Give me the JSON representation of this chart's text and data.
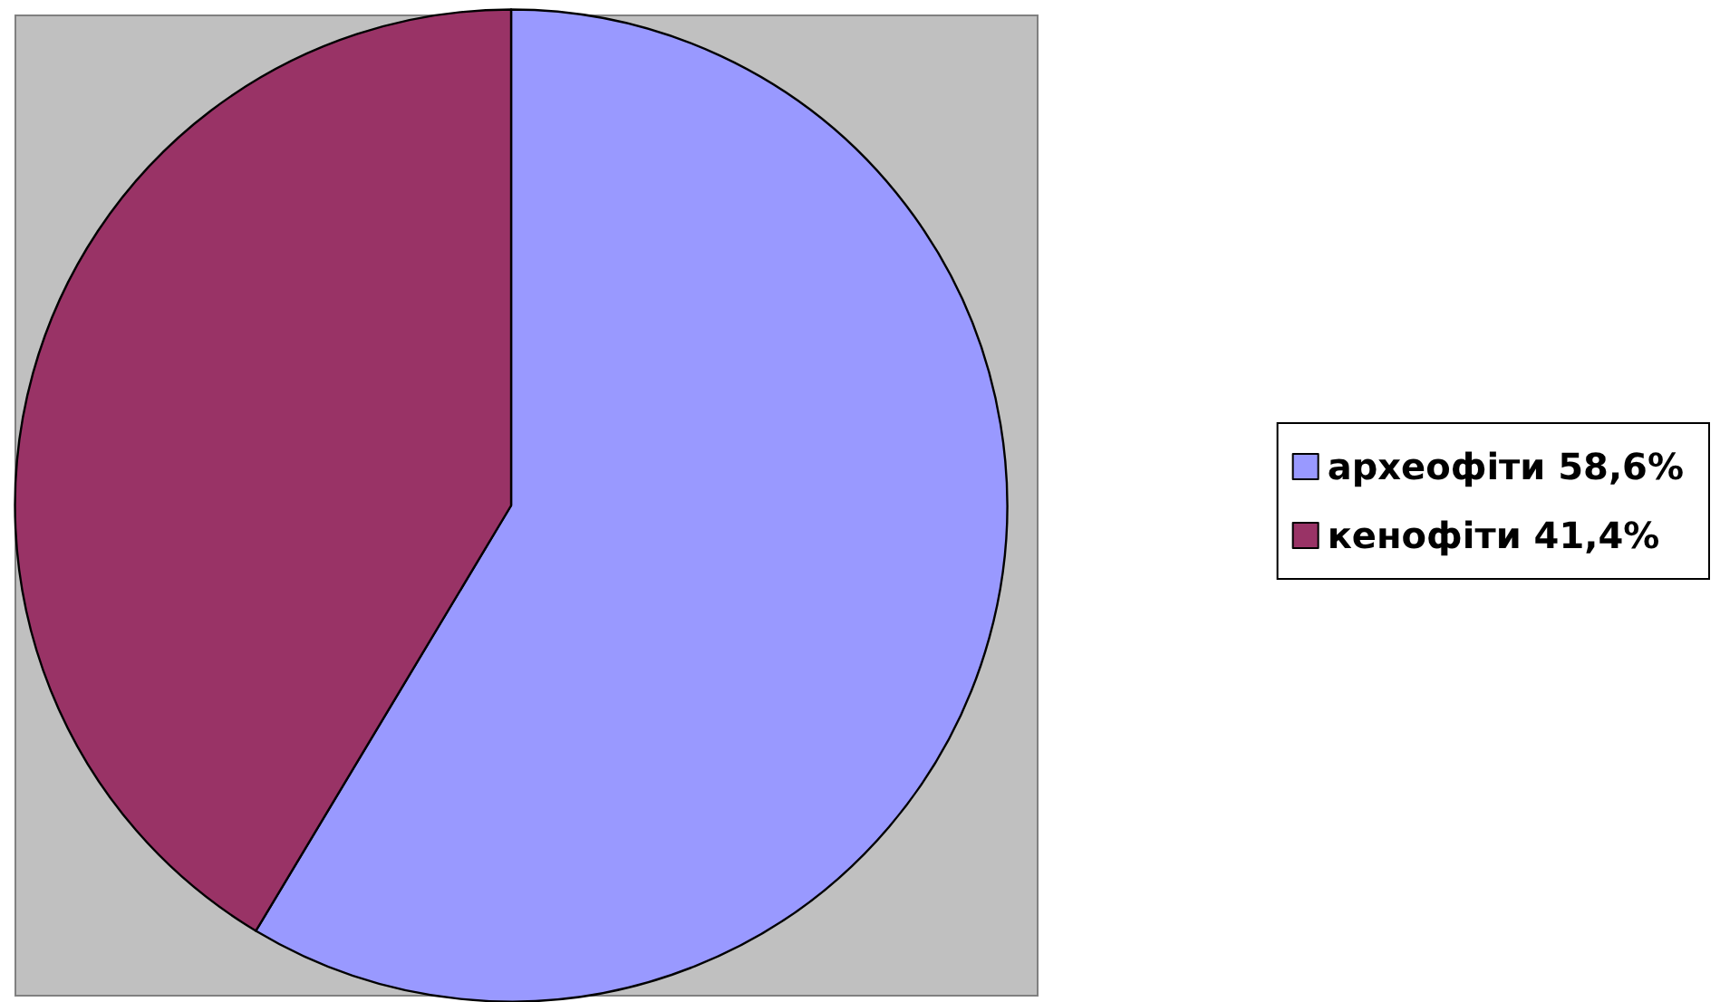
{
  "chart_data": {
    "type": "pie",
    "categories": [
      "археофіти 58,6%",
      "кенофіти 41,4%"
    ],
    "values": [
      58.6,
      41.4
    ],
    "colors": [
      "#9999ff",
      "#993366"
    ],
    "legend": "right"
  }
}
